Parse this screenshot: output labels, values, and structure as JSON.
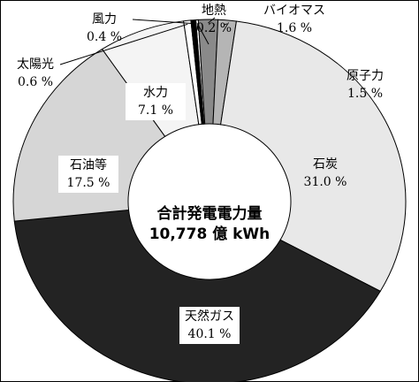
{
  "chart_data": {
    "type": "donut",
    "title": "合計発電電力量",
    "subtitle": "10,778 億 kWh",
    "categories": [
      "地熱",
      "バイオマス",
      "原子力",
      "石炭",
      "天然ガス",
      "石油等",
      "水力",
      "太陽光",
      "風力"
    ],
    "values": [
      0.2,
      1.6,
      1.5,
      31.0,
      40.1,
      17.5,
      7.1,
      0.6,
      0.4
    ],
    "value_labels": [
      "0.2 %",
      "1.6 %",
      "1.5 %",
      "31.0 %",
      "40.1 %",
      "17.5 %",
      "7.1 %",
      "0.6 %",
      "0.4 %"
    ],
    "colors": [
      "#ffffff",
      "#8a8a8a",
      "#b5b5b5",
      "#e8e8e8",
      "#232323",
      "#d6d6d6",
      "#f4f4f4",
      "#ffffff",
      "#000000"
    ]
  }
}
